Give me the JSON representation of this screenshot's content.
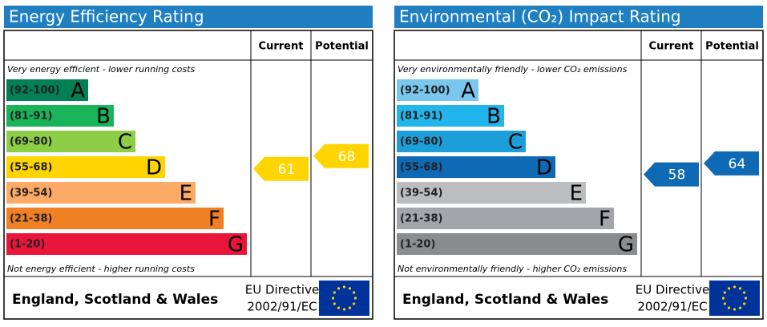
{
  "panels": [
    {
      "title": "Energy Efficiency Rating",
      "columns": [
        "Current",
        "Potential"
      ],
      "top_note": "Very energy efficient - lower running costs",
      "bottom_note": "Not energy efficient - higher running costs",
      "bands": [
        {
          "range": "(92-100)",
          "letter": "A",
          "color": "#008054"
        },
        {
          "range": "(81-91)",
          "letter": "B",
          "color": "#19b459"
        },
        {
          "range": "(69-80)",
          "letter": "C",
          "color": "#8dce46"
        },
        {
          "range": "(55-68)",
          "letter": "D",
          "color": "#ffd500"
        },
        {
          "range": "(39-54)",
          "letter": "E",
          "color": "#fcaa65"
        },
        {
          "range": "(21-38)",
          "letter": "F",
          "color": "#ef8023"
        },
        {
          "range": "(1-20)",
          "letter": "G",
          "color": "#e9153b"
        }
      ],
      "current": 61,
      "potential": 68,
      "footer": {
        "region": "England, Scotland & Wales",
        "directive": [
          "EU Directive",
          "2002/91/EC"
        ]
      }
    },
    {
      "title": "Environmental (CO₂) Impact Rating",
      "columns": [
        "Current",
        "Potential"
      ],
      "top_note": "Very environmentally friendly - lower CO₂ emissions",
      "bottom_note": "Not environmentally friendly - higher CO₂ emissions",
      "bands": [
        {
          "range": "(92-100)",
          "letter": "A",
          "color": "#7ac7ee"
        },
        {
          "range": "(81-91)",
          "letter": "B",
          "color": "#22b5eb"
        },
        {
          "range": "(69-80)",
          "letter": "C",
          "color": "#1c9fd9"
        },
        {
          "range": "(55-68)",
          "letter": "D",
          "color": "#0e6ab4"
        },
        {
          "range": "(39-54)",
          "letter": "E",
          "color": "#bbbdbf"
        },
        {
          "range": "(21-38)",
          "letter": "F",
          "color": "#a3a5a8"
        },
        {
          "range": "(1-20)",
          "letter": "G",
          "color": "#8a8c8e"
        }
      ],
      "current": 58,
      "potential": 64,
      "footer": {
        "region": "England, Scotland & Wales",
        "directive": [
          "EU Directive",
          "2002/91/EC"
        ]
      }
    }
  ]
}
